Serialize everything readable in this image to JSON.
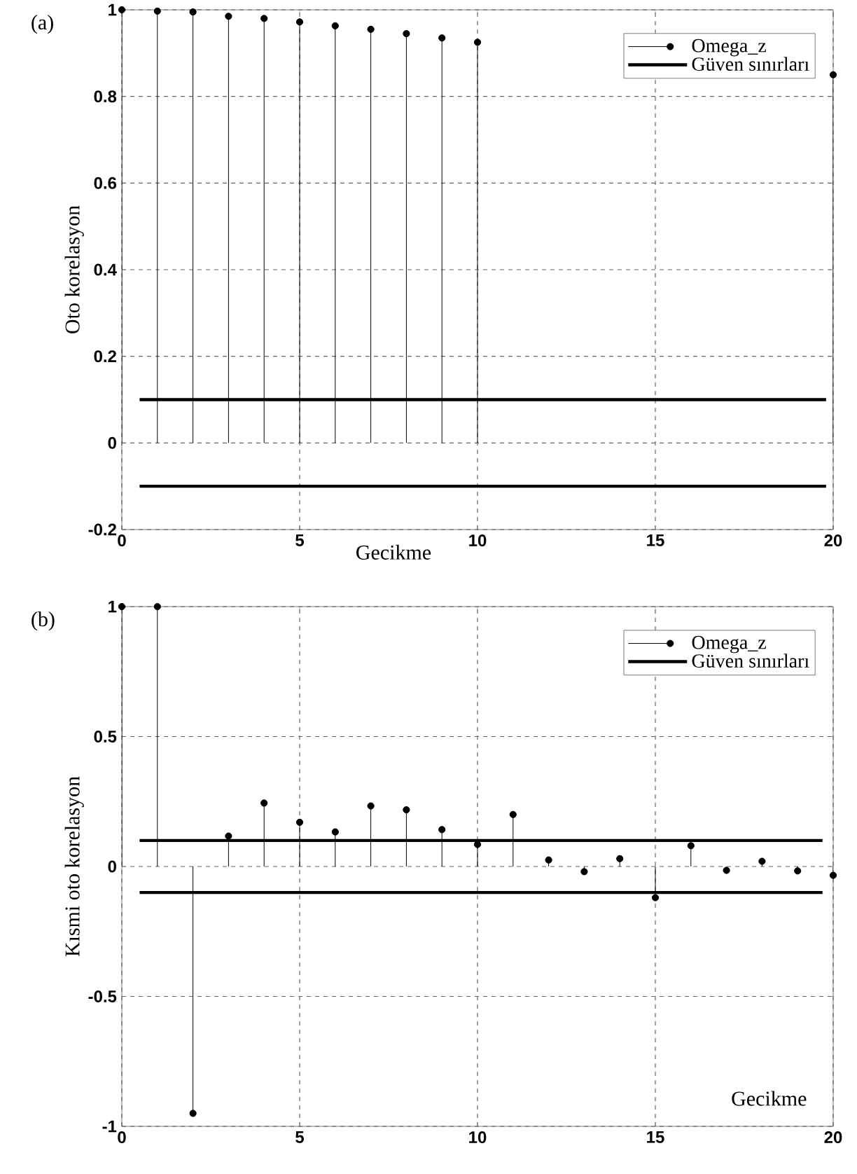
{
  "chart_data": [
    {
      "type": "lollipop",
      "xlabel": "Gecikme",
      "ylabel": "Oto korelasyon",
      "annotations": [
        "(a)"
      ],
      "xlim": [
        0,
        20
      ],
      "xticks": [
        0,
        5,
        10,
        15,
        20
      ],
      "ylim": [
        -0.2,
        1
      ],
      "yticks": [
        -0.2,
        0,
        0.2,
        0.4,
        0.6,
        0.8,
        1
      ],
      "grid": true,
      "legend": "top right",
      "marker": "circle",
      "x": [
        0,
        1,
        2,
        3,
        4,
        5,
        6,
        7,
        8,
        9,
        10,
        11,
        12,
        13,
        14,
        15,
        16,
        17,
        18,
        19,
        20
      ],
      "series": [
        {
          "name": "Omega_z",
          "color": "#000000",
          "values": [
            1,
            0.997,
            0.995,
            0.985,
            0.98,
            0.972,
            0.963,
            0.955,
            0.945,
            0.935,
            0.925,
            null,
            null,
            null,
            null,
            null,
            null,
            null,
            null,
            null,
            0.85
          ]
        },
        {
          "name": "Güven sınırları",
          "type": "line",
          "marker": "none",
          "color": "#000000",
          "x": [
            0.5,
            19.8
          ],
          "values": [
            0.1,
            0.1
          ]
        },
        {
          "type": "line",
          "marker": "none",
          "color": "#000000",
          "x": [
            0.5,
            19.8
          ],
          "values": [
            -0.1,
            -0.1
          ]
        }
      ]
    },
    {
      "type": "lollipop",
      "xlabel": "Gecikme",
      "ylabel": "Kısmi oto korelasyon",
      "annotations": [
        "(b)"
      ],
      "xlim": [
        0,
        20
      ],
      "xticks": [
        0,
        5,
        10,
        15,
        20
      ],
      "ylim": [
        -1,
        1
      ],
      "yticks": [
        -1,
        -0.5,
        0,
        0.5,
        1
      ],
      "grid": true,
      "legend": "top right",
      "marker": "circle",
      "x": [
        0,
        1,
        2,
        3,
        4,
        5,
        6,
        7,
        8,
        9,
        10,
        11,
        12,
        13,
        14,
        15,
        16,
        17,
        18,
        19,
        20
      ],
      "series": [
        {
          "name": "Omega_z",
          "color": "#000000",
          "values": [
            1,
            1,
            -0.95,
            0.117,
            0.244,
            0.17,
            0.133,
            0.233,
            0.218,
            0.142,
            0.085,
            0.2,
            0.025,
            -0.02,
            0.03,
            -0.12,
            0.08,
            -0.015,
            0.02,
            -0.017,
            -0.034
          ]
        },
        {
          "name": "Güven sınırları",
          "type": "line",
          "marker": "none",
          "color": "#000000",
          "x": [
            0.5,
            19.7
          ],
          "values": [
            0.1,
            0.1
          ]
        },
        {
          "type": "line",
          "marker": "none",
          "color": "#000000",
          "x": [
            0.5,
            19.7
          ],
          "values": [
            -0.1,
            -0.1
          ]
        }
      ]
    }
  ]
}
